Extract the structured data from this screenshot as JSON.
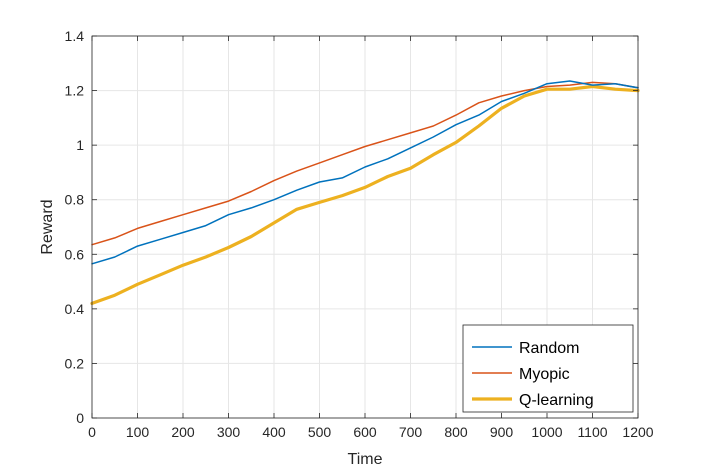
{
  "chart_data": {
    "type": "line",
    "xlabel": "Time",
    "ylabel": "Reward",
    "xlim": [
      0,
      1200
    ],
    "ylim": [
      0,
      1.4
    ],
    "xticks": [
      0,
      100,
      200,
      300,
      400,
      500,
      600,
      700,
      800,
      900,
      1000,
      1100,
      1200
    ],
    "xtick_labels": [
      "0",
      "100",
      "200",
      "300",
      "400",
      "500",
      "600",
      "700",
      "800",
      "900",
      "1000",
      "1100",
      "1200"
    ],
    "yticks": [
      0,
      0.2,
      0.4,
      0.6,
      0.8,
      1,
      1.2,
      1.4
    ],
    "ytick_labels": [
      "0",
      "0.2",
      "0.4",
      "0.6",
      "0.8",
      "1",
      "1.2",
      "1.4"
    ],
    "grid": true,
    "legend_position": "bottom-right",
    "series": [
      {
        "name": "Random",
        "color": "#0072BD",
        "x": [
          0,
          50,
          100,
          150,
          200,
          250,
          300,
          350,
          400,
          450,
          500,
          550,
          600,
          650,
          700,
          750,
          800,
          850,
          900,
          950,
          1000,
          1050,
          1100,
          1150,
          1200
        ],
        "y": [
          0.565,
          0.59,
          0.63,
          0.655,
          0.68,
          0.705,
          0.745,
          0.77,
          0.8,
          0.835,
          0.865,
          0.88,
          0.92,
          0.95,
          0.99,
          1.03,
          1.075,
          1.11,
          1.16,
          1.19,
          1.225,
          1.235,
          1.22,
          1.225,
          1.21
        ]
      },
      {
        "name": "Myopic",
        "color": "#D95319",
        "x": [
          0,
          50,
          100,
          150,
          200,
          250,
          300,
          350,
          400,
          450,
          500,
          550,
          600,
          650,
          700,
          750,
          800,
          850,
          900,
          950,
          1000,
          1050,
          1100,
          1150,
          1200
        ],
        "y": [
          0.635,
          0.66,
          0.695,
          0.72,
          0.745,
          0.77,
          0.795,
          0.83,
          0.87,
          0.905,
          0.935,
          0.965,
          0.995,
          1.02,
          1.045,
          1.07,
          1.11,
          1.155,
          1.18,
          1.2,
          1.215,
          1.22,
          1.23,
          1.225,
          1.21
        ]
      },
      {
        "name": "Q-learning",
        "color": "#EDB120",
        "x": [
          0,
          50,
          100,
          150,
          200,
          250,
          300,
          350,
          400,
          450,
          500,
          550,
          600,
          650,
          700,
          750,
          800,
          850,
          900,
          950,
          1000,
          1050,
          1100,
          1150,
          1200
        ],
        "y": [
          0.42,
          0.45,
          0.49,
          0.525,
          0.56,
          0.59,
          0.625,
          0.665,
          0.715,
          0.765,
          0.79,
          0.815,
          0.845,
          0.885,
          0.915,
          0.965,
          1.01,
          1.07,
          1.135,
          1.18,
          1.205,
          1.205,
          1.215,
          1.205,
          1.2
        ]
      }
    ]
  }
}
